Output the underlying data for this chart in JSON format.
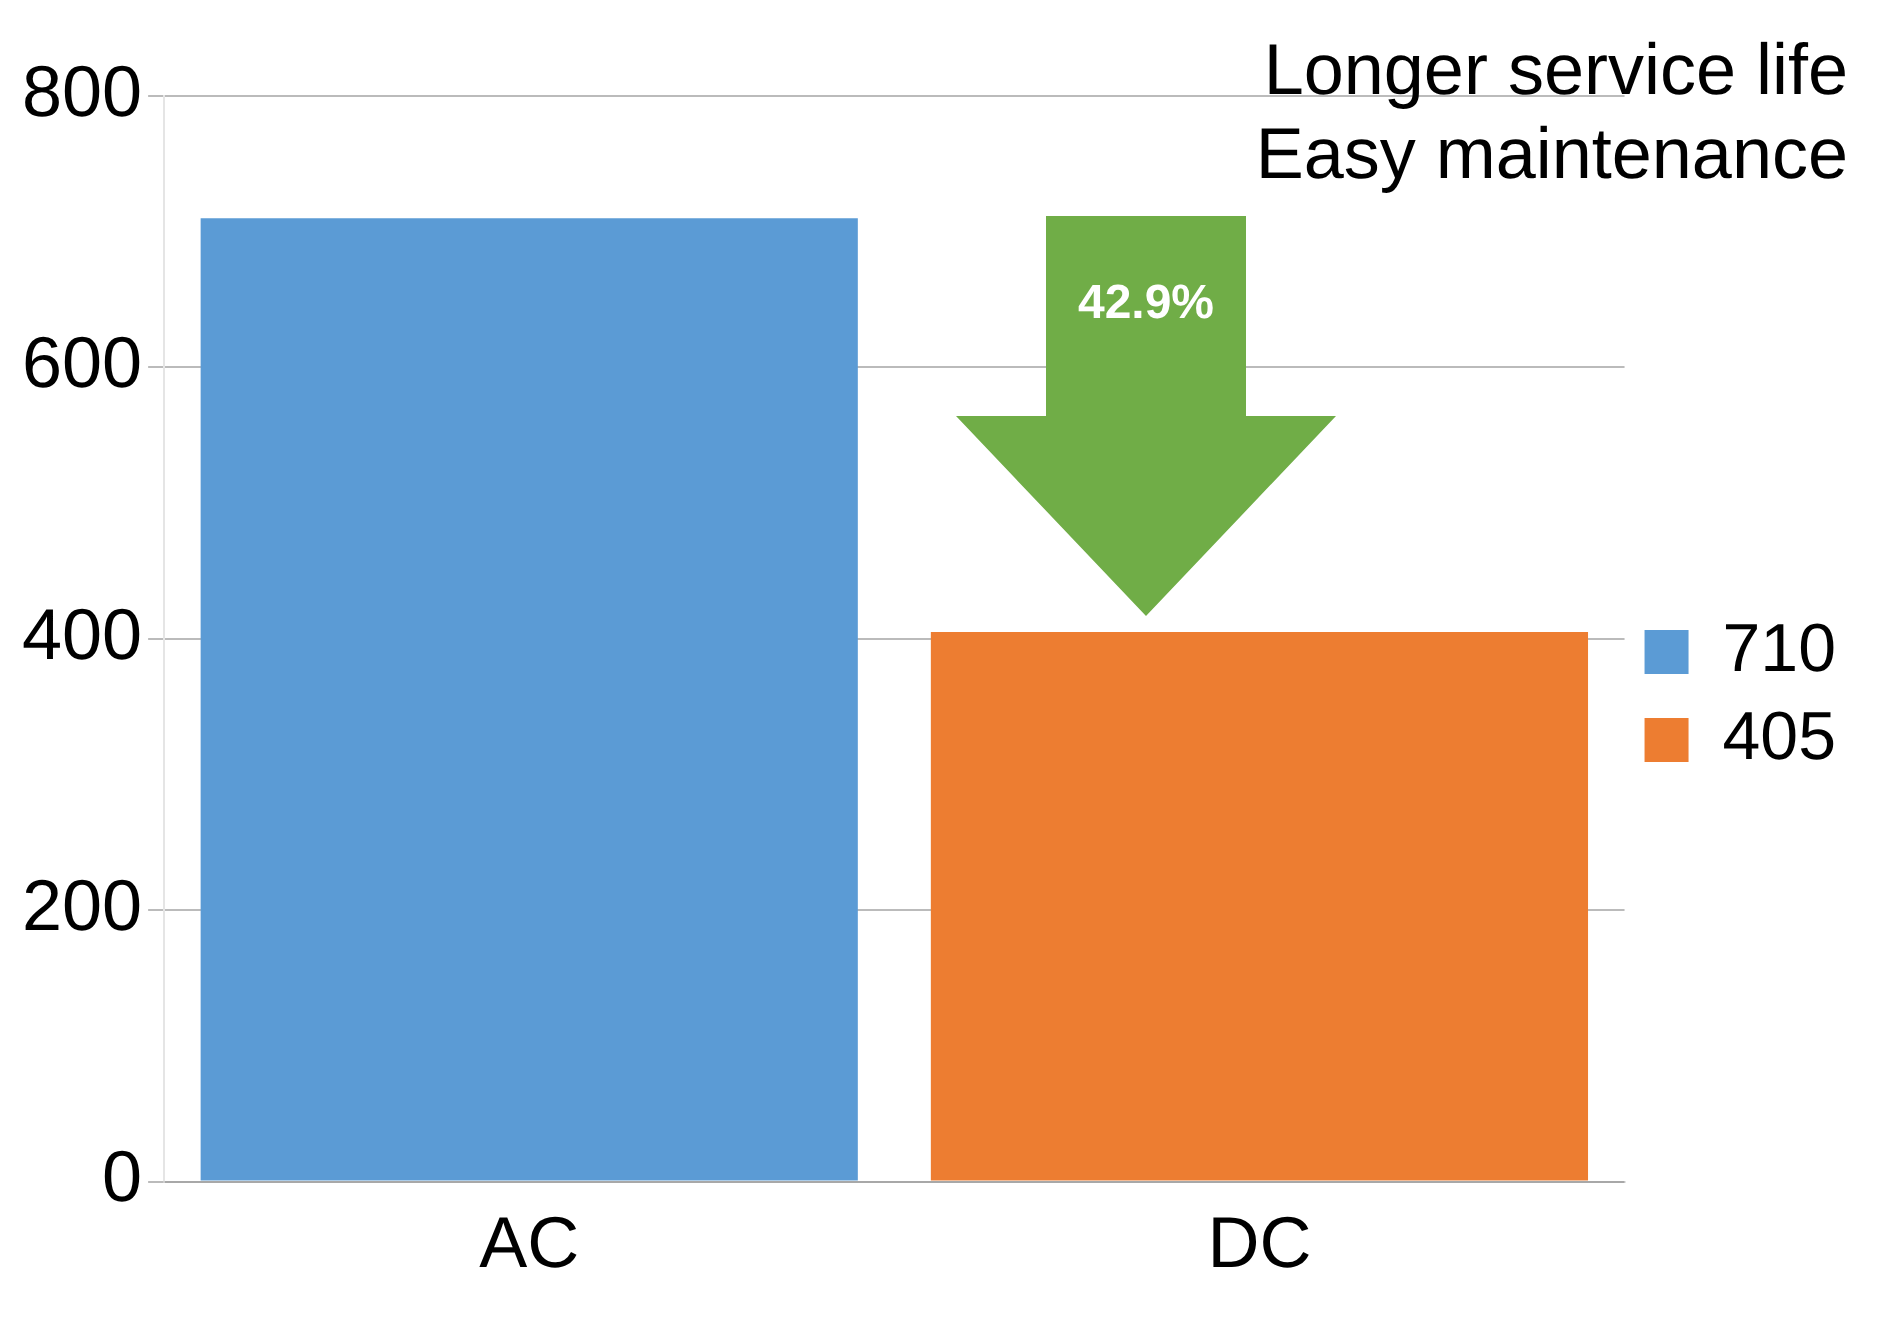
{
  "chart_data": {
    "type": "bar",
    "categories": [
      "AC",
      "DC"
    ],
    "series": [
      {
        "name": "710",
        "color": "#5b9bd5",
        "values": [
          710,
          null
        ]
      },
      {
        "name": "405",
        "color": "#ed7d31",
        "values": [
          null,
          405
        ]
      }
    ],
    "ylim": [
      0,
      800
    ],
    "yticks": [
      0,
      200,
      400,
      600,
      800
    ],
    "grid": "y",
    "legend": "right",
    "annotations": [
      "Longer service life",
      "Easy maintenance",
      "42.9%"
    ]
  }
}
